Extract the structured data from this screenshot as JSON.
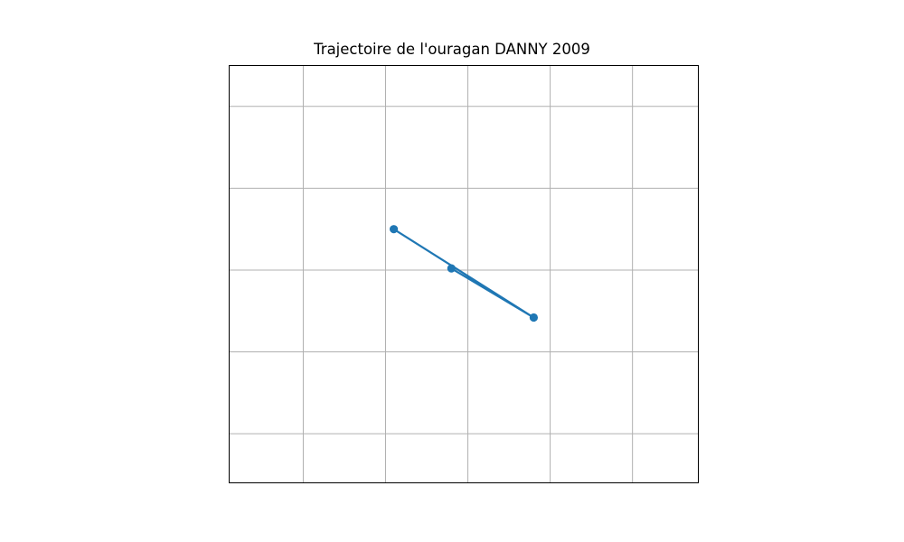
{
  "chart_data": {
    "type": "line",
    "title": "Trajectoire de l'ouragan DANNY 2009",
    "xlabel": "",
    "ylabel": "",
    "x_gridlines": [
      1,
      2,
      3,
      4,
      5
    ],
    "y_gridlines": [
      1,
      2,
      3,
      4,
      5
    ],
    "xlim": [
      0.1,
      5.8
    ],
    "ylim": [
      0.4,
      5.5
    ],
    "grid": true,
    "tick_labels_visible": false,
    "colors": {
      "series": "#1f77b4",
      "grid": "#b0b0b0",
      "frame": "#000000"
    },
    "series": [
      {
        "x": [
          2.1,
          3.8,
          2.8
        ],
        "y": [
          3.5,
          2.42,
          3.02
        ]
      }
    ]
  }
}
